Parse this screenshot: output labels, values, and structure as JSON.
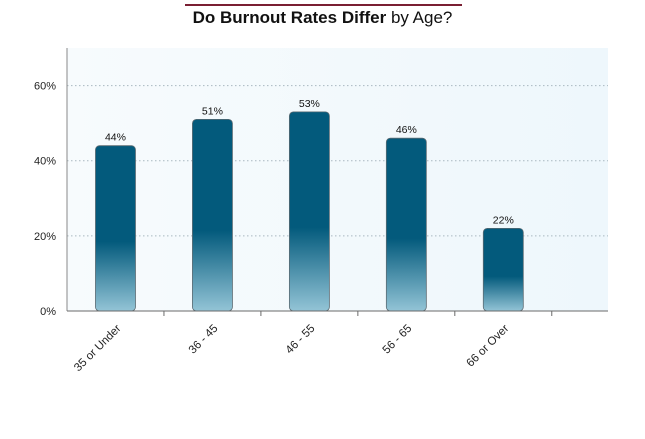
{
  "chart_data": {
    "type": "bar",
    "title_bold": "Do Burnout Rates Differ",
    "title_rest": " by Age?",
    "categories": [
      "35 or Under",
      "36 - 45",
      "46 - 55",
      "56 - 65",
      "66 or Over"
    ],
    "values": [
      44,
      51,
      53,
      46,
      22
    ],
    "value_labels": [
      "44%",
      "51%",
      "53%",
      "46%",
      "22%"
    ],
    "ylim": [
      0,
      70
    ],
    "yticks": [
      0,
      20,
      40,
      60
    ],
    "ytick_labels": [
      "0%",
      "20%",
      "40%",
      "60%"
    ],
    "grid": true,
    "xlabel": "",
    "ylabel": ""
  },
  "colors": {
    "bar_top": "#035a7c",
    "bar_bottom": "#93c4d6",
    "plot_background": "#eef7fc",
    "title_accent": "#7a1f33",
    "gridline": "#a9b8c0"
  }
}
